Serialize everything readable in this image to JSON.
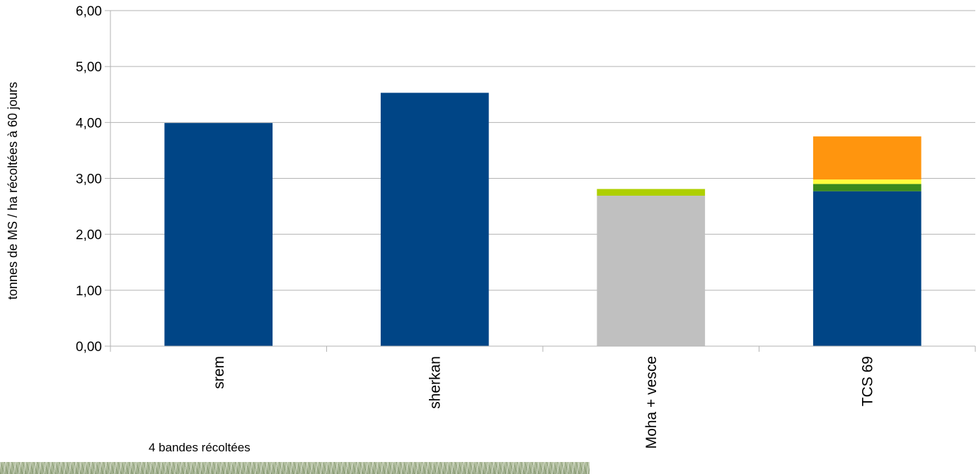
{
  "chart_data": {
    "type": "bar",
    "stacked": true,
    "ylabel": "tonnes de MS / ha récoltées à 60 jours",
    "ylim": [
      0,
      6
    ],
    "yticks": [
      "0,00",
      "1,00",
      "2,00",
      "3,00",
      "4,00",
      "5,00",
      "6,00"
    ],
    "grid": true,
    "categories": [
      "srem",
      "sherkan",
      "Moha + vesce",
      "TCS 69"
    ],
    "series": [
      {
        "color": "#004586",
        "values": [
          3.99,
          4.53,
          0,
          2.77
        ]
      },
      {
        "color": "#c0c0c0",
        "values": [
          0,
          0,
          2.69,
          0
        ]
      },
      {
        "color": "#aecf00",
        "values": [
          0,
          0,
          0.12,
          0
        ]
      },
      {
        "color": "#3a8a1d",
        "values": [
          0,
          0,
          0,
          0.13
        ]
      },
      {
        "color": "#ffff3c",
        "values": [
          0,
          0,
          0,
          0.08
        ]
      },
      {
        "color": "#ff950e",
        "values": [
          0,
          0,
          0,
          0.77
        ]
      }
    ]
  },
  "caption": "4 bandes récoltées",
  "photo_icon": "grass-photo"
}
